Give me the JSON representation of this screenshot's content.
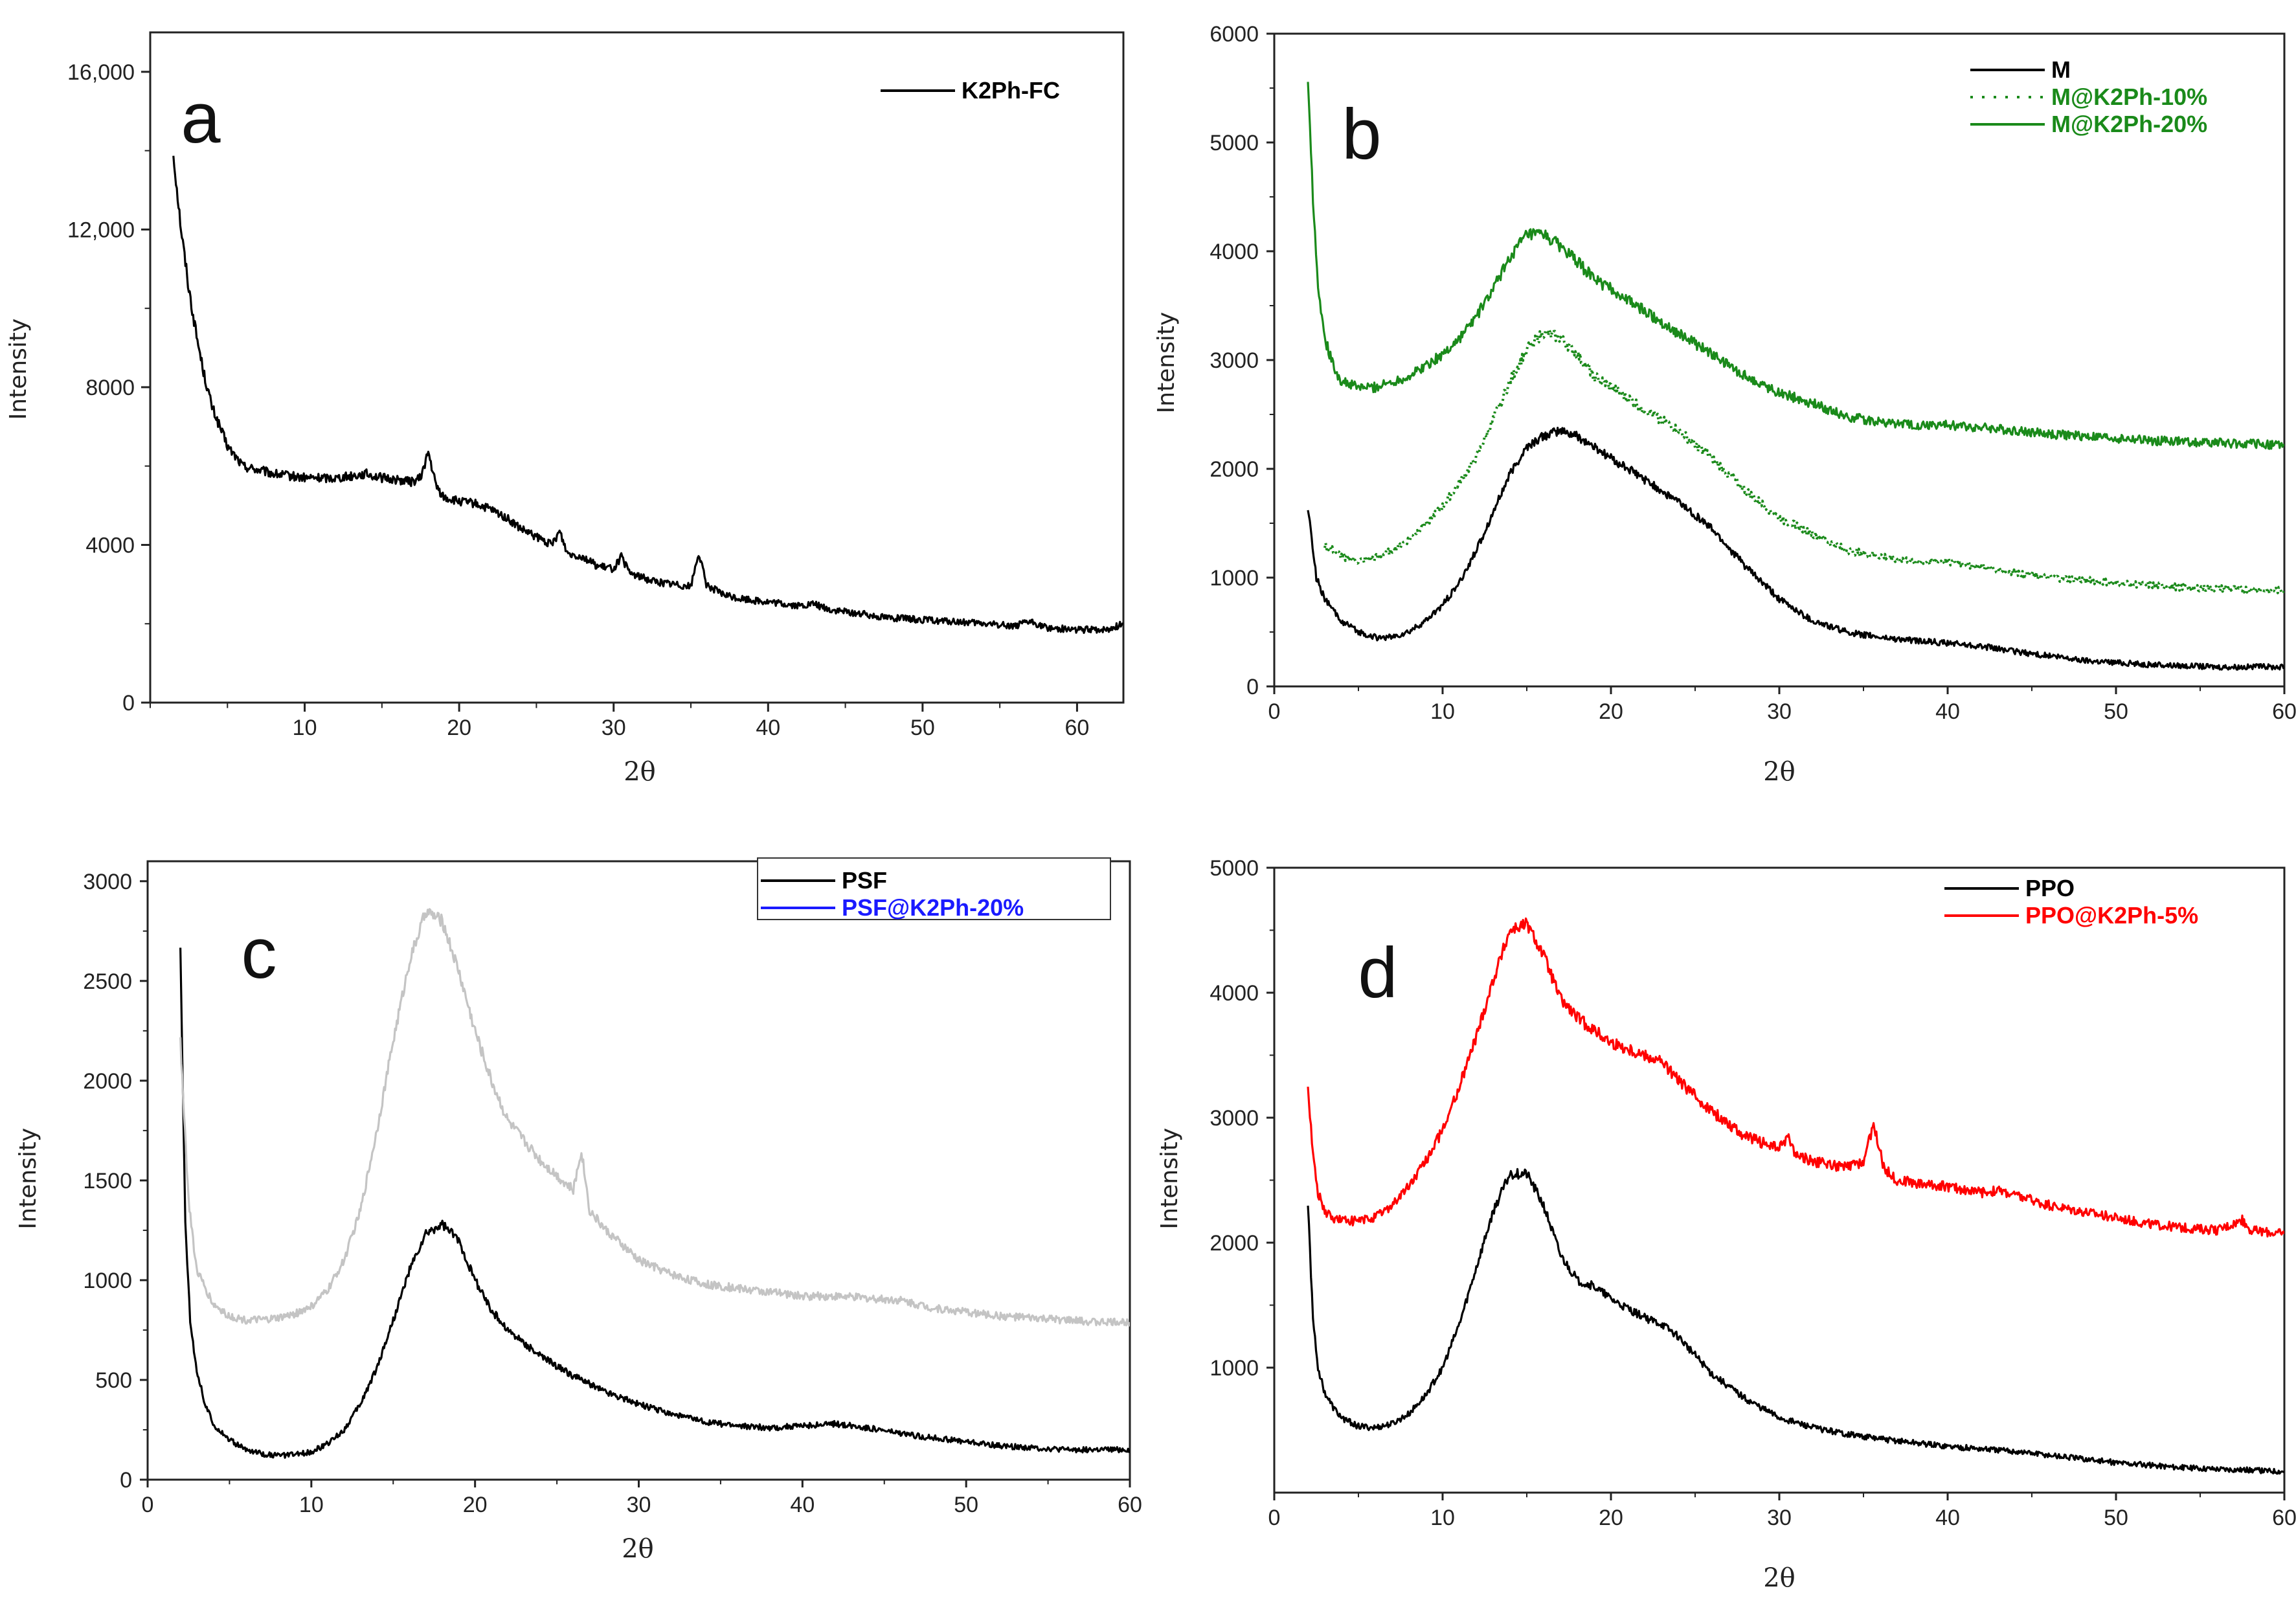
{
  "chart_data": [
    {
      "panel": "a",
      "type": "line",
      "xlabel": "2θ",
      "ylabel": "Intensity",
      "xlim": [
        0,
        63
      ],
      "ylim": [
        0,
        17000
      ],
      "xticks": [
        10,
        20,
        30,
        40,
        50,
        60
      ],
      "yticks": [
        0,
        4000,
        8000,
        12000,
        16000
      ],
      "ytick_labels": [
        "0",
        "4000",
        "8000",
        "12,000",
        "16,000"
      ],
      "legend": [
        "K2Ph-FC"
      ],
      "legend_position": "top-right",
      "series": [
        {
          "name": "K2Ph-FC",
          "color": "#000000",
          "style": "solid",
          "x": [
            1.5,
            2,
            2.5,
            3,
            3.5,
            4,
            5,
            6,
            8,
            10,
            12,
            14,
            15,
            16,
            17,
            17.5,
            18,
            18.5,
            19,
            20,
            21,
            22,
            23,
            24,
            25,
            26,
            26.5,
            27,
            28,
            29,
            30,
            30.5,
            31,
            32,
            33,
            34,
            35,
            35.5,
            36,
            37,
            38,
            40,
            42,
            43,
            44,
            46,
            48,
            50,
            52,
            54,
            56,
            57,
            58,
            60,
            62,
            63
          ],
          "y": [
            13900,
            12000,
            10500,
            9300,
            8300,
            7500,
            6500,
            6000,
            5800,
            5700,
            5700,
            5800,
            5700,
            5650,
            5600,
            5700,
            6350,
            5500,
            5200,
            5100,
            5050,
            4900,
            4700,
            4400,
            4200,
            4000,
            4350,
            3800,
            3700,
            3450,
            3400,
            3700,
            3300,
            3150,
            3050,
            3000,
            2950,
            3800,
            3000,
            2750,
            2650,
            2550,
            2450,
            2500,
            2350,
            2250,
            2150,
            2100,
            2050,
            2000,
            1950,
            2050,
            1900,
            1850,
            1850,
            2000
          ]
        }
      ]
    },
    {
      "panel": "b",
      "type": "line",
      "xlabel": "2θ",
      "ylabel": "Intensity",
      "xlim": [
        0,
        60
      ],
      "ylim": [
        0,
        6000
      ],
      "xticks": [
        0,
        10,
        20,
        30,
        40,
        50,
        60
      ],
      "yticks": [
        0,
        1000,
        2000,
        3000,
        4000,
        5000,
        6000
      ],
      "ytick_labels": [
        "0",
        "1000",
        "2000",
        "3000",
        "4000",
        "5000",
        "6000"
      ],
      "legend": [
        "M",
        "M@K2Ph-10%",
        "M@K2Ph-20%"
      ],
      "legend_position": "top-right",
      "series": [
        {
          "name": "M",
          "color": "#000000",
          "style": "solid",
          "x": [
            2,
            2.5,
            3,
            4,
            5,
            6,
            7,
            8,
            9,
            10,
            11,
            12,
            13,
            14,
            15,
            16,
            17,
            18,
            19,
            20,
            22,
            24,
            26,
            28,
            30,
            32,
            34,
            36,
            38,
            40,
            42,
            44,
            46,
            48,
            50,
            52,
            54,
            56,
            58,
            60
          ],
          "y": [
            1650,
            1000,
            800,
            600,
            500,
            450,
            450,
            500,
            600,
            750,
            950,
            1250,
            1600,
            1950,
            2200,
            2300,
            2350,
            2300,
            2200,
            2100,
            1900,
            1700,
            1450,
            1100,
            800,
            600,
            500,
            450,
            420,
            400,
            370,
            320,
            280,
            240,
            220,
            200,
            190,
            180,
            180,
            180
          ]
        },
        {
          "name": "M@K2Ph-10%",
          "color": "#1a8a1a",
          "style": "dotted",
          "x": [
            3,
            4,
            5,
            6,
            7,
            8,
            10,
            12,
            13,
            14,
            15,
            16,
            17,
            18,
            19,
            20,
            22,
            24,
            26,
            28,
            30,
            32,
            34,
            36,
            38,
            40,
            42,
            44,
            46,
            48,
            50,
            52,
            54,
            56,
            58,
            60
          ],
          "y": [
            1300,
            1200,
            1150,
            1180,
            1250,
            1350,
            1650,
            2100,
            2450,
            2800,
            3100,
            3250,
            3200,
            3050,
            2850,
            2750,
            2550,
            2350,
            2100,
            1800,
            1550,
            1400,
            1250,
            1200,
            1150,
            1150,
            1100,
            1050,
            1000,
            980,
            950,
            930,
            910,
            900,
            890,
            880
          ]
        },
        {
          "name": "M@K2Ph-20%",
          "color": "#1a8a1a",
          "style": "solid",
          "x": [
            2,
            2.3,
            2.6,
            3,
            3.5,
            4,
            5,
            6,
            7,
            8,
            9,
            10,
            11,
            12,
            13,
            14,
            15,
            16,
            17,
            18,
            19,
            20,
            22,
            24,
            26,
            28,
            30,
            32,
            34,
            36,
            38,
            40,
            42,
            44,
            46,
            48,
            50,
            52,
            54,
            56,
            58,
            60
          ],
          "y": [
            5600,
            4500,
            3700,
            3200,
            2950,
            2800,
            2750,
            2750,
            2800,
            2850,
            2950,
            3050,
            3200,
            3400,
            3650,
            3950,
            4150,
            4150,
            4050,
            3900,
            3750,
            3650,
            3450,
            3250,
            3050,
            2850,
            2700,
            2600,
            2480,
            2430,
            2400,
            2400,
            2380,
            2350,
            2320,
            2300,
            2280,
            2260,
            2250,
            2240,
            2230,
            2220
          ]
        }
      ]
    },
    {
      "panel": "c",
      "type": "line",
      "xlabel": "2θ",
      "ylabel": "Intensity",
      "xlim": [
        0,
        60
      ],
      "ylim": [
        0,
        3100
      ],
      "xticks": [
        0,
        10,
        20,
        30,
        40,
        50,
        60
      ],
      "yticks": [
        0,
        500,
        1000,
        1500,
        2000,
        2500,
        3000
      ],
      "ytick_labels": [
        "0",
        "500",
        "1000",
        "1500",
        "2000",
        "2500",
        "3000"
      ],
      "legend": [
        "PSF",
        "PSF@K2Ph-20%"
      ],
      "legend_colors": [
        "#000000",
        "#1a1aff"
      ],
      "legend_position": "top-right",
      "series": [
        {
          "name": "PSF",
          "color": "#000000",
          "style": "solid",
          "x": [
            2,
            2.3,
            2.6,
            3,
            3.5,
            4,
            5,
            6,
            7,
            8,
            9,
            10,
            11,
            12,
            13,
            14,
            15,
            16,
            17,
            18,
            19,
            20,
            21,
            22,
            24,
            26,
            28,
            30,
            32,
            34,
            36,
            38,
            40,
            42,
            44,
            46,
            48,
            50,
            52,
            54,
            56,
            58,
            60
          ],
          "y": [
            2650,
            1300,
            800,
            550,
            380,
            280,
            200,
            150,
            130,
            120,
            125,
            140,
            180,
            250,
            380,
            560,
            800,
            1050,
            1230,
            1280,
            1200,
            1000,
            850,
            750,
            620,
            520,
            440,
            380,
            330,
            290,
            270,
            260,
            270,
            280,
            260,
            230,
            210,
            190,
            170,
            160,
            150,
            150,
            150
          ]
        },
        {
          "name": "PSF@K2Ph-20%",
          "color": "#c4c4c4",
          "style": "solid",
          "x": [
            2,
            2.5,
            3,
            4,
            5,
            6,
            7,
            8,
            9,
            10,
            11,
            12,
            13,
            14,
            15,
            16,
            17,
            18,
            19,
            20,
            21,
            22,
            24,
            26,
            26.5,
            27,
            28,
            30,
            32,
            34,
            36,
            38,
            40,
            42,
            44,
            46,
            48,
            50,
            52,
            54,
            56,
            58,
            60
          ],
          "y": [
            2200,
            1400,
            1050,
            880,
            820,
            800,
            800,
            810,
            830,
            870,
            950,
            1100,
            1350,
            1750,
            2200,
            2600,
            2850,
            2800,
            2550,
            2250,
            2000,
            1800,
            1600,
            1450,
            1650,
            1350,
            1250,
            1100,
            1030,
            980,
            960,
            940,
            920,
            920,
            910,
            900,
            860,
            840,
            820,
            810,
            800,
            790,
            790
          ]
        }
      ]
    },
    {
      "panel": "d",
      "type": "line",
      "xlabel": "2θ",
      "ylabel": "Intensity",
      "xlim": [
        0,
        60
      ],
      "ylim": [
        0,
        5000
      ],
      "xticks": [
        0,
        10,
        20,
        30,
        40,
        50,
        60
      ],
      "yticks": [
        1000,
        2000,
        3000,
        4000,
        5000
      ],
      "ytick_labels": [
        "1000",
        "2000",
        "3000",
        "4000",
        "5000"
      ],
      "legend": [
        "PPO",
        "PPO@K2Ph-5%"
      ],
      "legend_position": "top-right",
      "series": [
        {
          "name": "PPO",
          "color": "#000000",
          "style": "solid",
          "x": [
            2,
            2.3,
            2.6,
            3,
            3.5,
            4,
            5,
            6,
            7,
            8,
            9,
            10,
            11,
            12,
            13,
            14,
            15,
            16,
            17,
            18,
            19,
            20,
            22,
            23,
            24,
            26,
            28,
            30,
            32,
            34,
            36,
            38,
            40,
            42,
            44,
            46,
            48,
            50,
            52,
            54,
            56,
            58,
            60
          ],
          "y": [
            2300,
            1400,
            1000,
            800,
            680,
            600,
            530,
            520,
            550,
            630,
            780,
            1000,
            1350,
            1800,
            2250,
            2550,
            2550,
            2300,
            1900,
            1700,
            1650,
            1550,
            1400,
            1350,
            1250,
            950,
            750,
            600,
            520,
            470,
            430,
            400,
            370,
            350,
            330,
            300,
            270,
            240,
            220,
            200,
            190,
            180,
            170
          ]
        },
        {
          "name": "PPO@K2Ph-5%",
          "color": "#ff0000",
          "style": "solid",
          "x": [
            2,
            2.3,
            2.6,
            3,
            3.5,
            4,
            5,
            6,
            7,
            8,
            9,
            10,
            11,
            12,
            13,
            14,
            15,
            16,
            17,
            18,
            19,
            20,
            22,
            23,
            24,
            26,
            28,
            30,
            30.5,
            31,
            32,
            34,
            35,
            35.6,
            36.2,
            37,
            38,
            40,
            42,
            43,
            44,
            46,
            48,
            50,
            52,
            54,
            56,
            57.5,
            58,
            60
          ],
          "y": [
            3250,
            2700,
            2400,
            2250,
            2200,
            2180,
            2170,
            2200,
            2300,
            2450,
            2650,
            2900,
            3250,
            3650,
            4100,
            4500,
            4550,
            4300,
            3950,
            3800,
            3700,
            3600,
            3500,
            3450,
            3300,
            3050,
            2850,
            2750,
            2850,
            2700,
            2650,
            2600,
            2650,
            2950,
            2600,
            2500,
            2480,
            2450,
            2400,
            2420,
            2380,
            2300,
            2250,
            2200,
            2150,
            2120,
            2100,
            2180,
            2100,
            2070
          ]
        }
      ]
    }
  ],
  "panel_labels": [
    "a",
    "b",
    "c",
    "d"
  ]
}
